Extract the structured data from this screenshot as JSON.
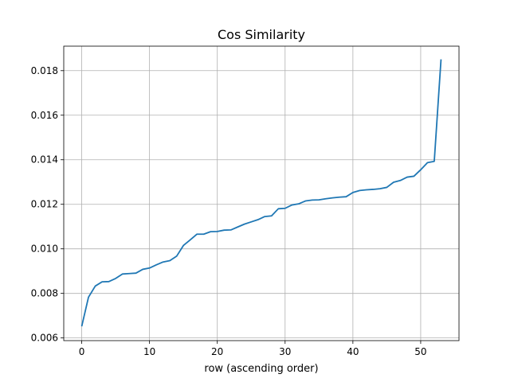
{
  "chart_data": {
    "type": "line",
    "title": "Cos Similarity",
    "xlabel": "row (ascending order)",
    "ylabel": "",
    "xlim": [
      -2.65,
      55.65
    ],
    "ylim": [
      0.00588,
      0.0191
    ],
    "x_ticks": [
      0,
      10,
      20,
      30,
      40,
      50
    ],
    "x_tick_labels": [
      "0",
      "10",
      "20",
      "30",
      "40",
      "50"
    ],
    "y_ticks": [
      0.006,
      0.008,
      0.01,
      0.012,
      0.014,
      0.016,
      0.018
    ],
    "y_tick_labels": [
      "0.006",
      "0.008",
      "0.010",
      "0.012",
      "0.014",
      "0.016",
      "0.018"
    ],
    "grid": true,
    "series": [
      {
        "name": "",
        "color": "#1f77b4",
        "x": [
          0,
          1,
          2,
          3,
          4,
          5,
          6,
          7,
          8,
          9,
          10,
          11,
          12,
          13,
          14,
          15,
          16,
          17,
          18,
          19,
          20,
          21,
          22,
          23,
          24,
          25,
          26,
          27,
          28,
          29,
          30,
          31,
          32,
          33,
          34,
          35,
          36,
          37,
          38,
          39,
          40,
          41,
          42,
          43,
          44,
          45,
          46,
          47,
          48,
          49,
          50,
          51,
          52,
          53
        ],
        "y": [
          0.00652,
          0.00783,
          0.00833,
          0.00852,
          0.00853,
          0.00867,
          0.00887,
          0.00889,
          0.00891,
          0.00908,
          0.00914,
          0.00928,
          0.00941,
          0.00947,
          0.00967,
          0.01015,
          0.0104,
          0.01066,
          0.01066,
          0.01077,
          0.01078,
          0.01084,
          0.01085,
          0.01098,
          0.01111,
          0.01121,
          0.01131,
          0.01145,
          0.01148,
          0.0118,
          0.01182,
          0.01197,
          0.01202,
          0.01215,
          0.01219,
          0.0122,
          0.01225,
          0.01229,
          0.01232,
          0.01234,
          0.01253,
          0.01262,
          0.01265,
          0.01267,
          0.0127,
          0.01276,
          0.01299,
          0.01307,
          0.01322,
          0.01326,
          0.01355,
          0.01387,
          0.01393,
          0.01851
        ]
      }
    ]
  }
}
